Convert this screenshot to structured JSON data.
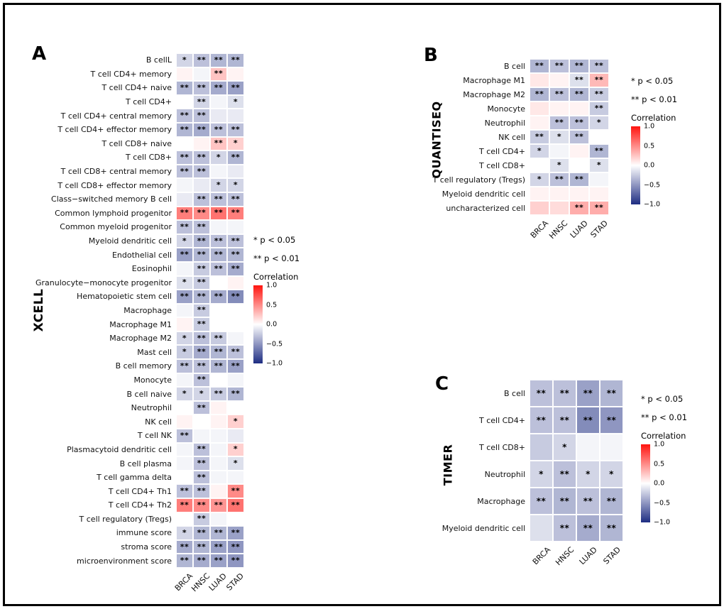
{
  "figure": {
    "background": "#ffffff",
    "border_color": "#000000"
  },
  "palette": {
    "positive_max": "#ff1410",
    "zero": "#ffffff",
    "negative_max": "#1e2d82",
    "star_color": "#000000"
  },
  "chart_data": [
    {
      "type": "heatmap",
      "panel": "A",
      "method": "XCELL",
      "columns": [
        "BRCA",
        "HNSC",
        "LUAD",
        "STAD"
      ],
      "rows": [
        "B cellL",
        "T cell CD4+ memory",
        "T cell CD4+ naive",
        "T cell CD4+",
        "T cell CD4+ central memory",
        "T cell CD4+ effector memory",
        "T cell CD8+ naive",
        "T cell CD8+",
        "T cell CD8+ central memory",
        "T cell CD8+ effector memory",
        "Class−switched memory B cell",
        "Common lymphoid progenitor",
        "Common myeloid progenitor",
        "Myeloid dendritic cell",
        "Endothelial cell",
        "Eosinophil",
        "Granulocyte−monocyte progenitor",
        "Hematopoietic stem cell",
        "Macrophage",
        "Macrophage M1",
        "Macrophage M2",
        "Mast cell",
        "B cell memory",
        "Monocyte",
        "B cell naive",
        "Neutrophil",
        "NK cell",
        "T cell NK",
        "Plasmacytoid dendritic cell",
        "B cell plasma",
        "T cell gamma delta",
        "T cell CD4+ Th1",
        "T cell CD4+ Th2",
        "T cell regulatory (Tregs)",
        "immune score",
        "stroma score",
        "microenvironment score"
      ],
      "values": [
        [
          -0.2,
          -0.3,
          -0.35,
          -0.35
        ],
        [
          0.05,
          -0.05,
          0.25,
          0.05
        ],
        [
          -0.35,
          -0.3,
          -0.4,
          -0.45
        ],
        [
          0.0,
          -0.2,
          -0.05,
          -0.15
        ],
        [
          -0.3,
          -0.3,
          -0.1,
          -0.1
        ],
        [
          -0.35,
          -0.4,
          -0.3,
          -0.3
        ],
        [
          0.0,
          0.05,
          0.25,
          0.2
        ],
        [
          -0.3,
          -0.3,
          -0.2,
          -0.35
        ],
        [
          -0.3,
          -0.3,
          -0.05,
          -0.1
        ],
        [
          -0.05,
          -0.1,
          -0.2,
          -0.2
        ],
        [
          -0.1,
          -0.3,
          -0.3,
          -0.3
        ],
        [
          0.55,
          0.5,
          0.6,
          0.55
        ],
        [
          -0.3,
          -0.3,
          -0.05,
          -0.05
        ],
        [
          -0.2,
          -0.35,
          -0.3,
          -0.3
        ],
        [
          -0.45,
          -0.35,
          -0.35,
          -0.35
        ],
        [
          -0.05,
          -0.25,
          -0.3,
          -0.4
        ],
        [
          -0.15,
          -0.25,
          0.0,
          0.05
        ],
        [
          -0.45,
          -0.35,
          -0.4,
          -0.55
        ],
        [
          -0.05,
          -0.25,
          0.0,
          0.0
        ],
        [
          0.05,
          -0.25,
          0.0,
          0.0
        ],
        [
          -0.2,
          -0.3,
          -0.25,
          -0.05
        ],
        [
          -0.25,
          -0.4,
          -0.35,
          -0.3
        ],
        [
          -0.3,
          -0.3,
          -0.35,
          -0.45
        ],
        [
          -0.05,
          -0.3,
          0.0,
          -0.05
        ],
        [
          -0.2,
          -0.2,
          -0.25,
          -0.35
        ],
        [
          0.0,
          -0.3,
          0.05,
          0.0
        ],
        [
          0.05,
          0.0,
          0.05,
          0.2
        ],
        [
          -0.3,
          -0.05,
          -0.05,
          -0.1
        ],
        [
          -0.05,
          -0.3,
          -0.05,
          0.2
        ],
        [
          -0.05,
          -0.3,
          -0.05,
          -0.15
        ],
        [
          0.0,
          -0.3,
          -0.05,
          -0.05
        ],
        [
          -0.3,
          -0.3,
          0.05,
          0.5
        ],
        [
          0.55,
          0.5,
          0.45,
          0.6
        ],
        [
          0.0,
          -0.25,
          -0.05,
          0.0
        ],
        [
          -0.2,
          -0.35,
          -0.35,
          -0.45
        ],
        [
          -0.4,
          -0.35,
          -0.45,
          -0.5
        ],
        [
          -0.35,
          -0.4,
          -0.45,
          -0.5
        ]
      ],
      "sig": [
        [
          "*",
          "**",
          "**",
          "**"
        ],
        [
          "",
          "",
          "**",
          ""
        ],
        [
          "**",
          "**",
          "**",
          "**"
        ],
        [
          "",
          "**",
          "",
          "*"
        ],
        [
          "**",
          "**",
          "",
          ""
        ],
        [
          "**",
          "**",
          "**",
          "**"
        ],
        [
          "",
          "",
          "**",
          "*"
        ],
        [
          "**",
          "**",
          "*",
          "**"
        ],
        [
          "**",
          "**",
          "",
          ""
        ],
        [
          "",
          "",
          "*",
          "*"
        ],
        [
          "",
          "**",
          "**",
          "**"
        ],
        [
          "**",
          "**",
          "**",
          "**"
        ],
        [
          "**",
          "**",
          "",
          ""
        ],
        [
          "*",
          "**",
          "**",
          "**"
        ],
        [
          "**",
          "**",
          "**",
          "**"
        ],
        [
          "",
          "**",
          "**",
          "**"
        ],
        [
          "*",
          "**",
          "",
          ""
        ],
        [
          "**",
          "**",
          "**",
          "**"
        ],
        [
          "",
          "**",
          "",
          ""
        ],
        [
          "",
          "**",
          "",
          ""
        ],
        [
          "*",
          "**",
          "**",
          ""
        ],
        [
          "*",
          "**",
          "**",
          "**"
        ],
        [
          "**",
          "**",
          "**",
          "**"
        ],
        [
          "",
          "**",
          "",
          ""
        ],
        [
          "*",
          "*",
          "**",
          "**"
        ],
        [
          "",
          "**",
          "",
          ""
        ],
        [
          "",
          "",
          "",
          "*"
        ],
        [
          "**",
          "",
          "",
          ""
        ],
        [
          "",
          "**",
          "",
          "*"
        ],
        [
          "",
          "**",
          "",
          "*"
        ],
        [
          "",
          "**",
          "",
          ""
        ],
        [
          "**",
          "**",
          "",
          "**"
        ],
        [
          "**",
          "**",
          "**",
          "**"
        ],
        [
          "",
          "**",
          "",
          ""
        ],
        [
          "*",
          "**",
          "**",
          "**"
        ],
        [
          "**",
          "**",
          "**",
          "**"
        ],
        [
          "**",
          "**",
          "**",
          "**"
        ]
      ],
      "legend": {
        "p05": "* p < 0.05",
        "p01": "** p < 0.01",
        "colorbar_title": "Correlation",
        "ticks": [
          "1.0",
          "0.5",
          "0.0",
          "−0.5",
          "−1.0"
        ],
        "range": [
          -1,
          1
        ]
      }
    },
    {
      "type": "heatmap",
      "panel": "B",
      "method": "QUANTISEQ",
      "columns": [
        "BRCA",
        "HNSC",
        "LUAD",
        "STAD"
      ],
      "rows": [
        "B cell",
        "Macrophage M1",
        "Macrophage M2",
        "Monocyte",
        "Neutrophil",
        "NK cell",
        "T cell CD4+",
        "T cell CD8+",
        "T cell regulatory (Tregs)",
        "Myeloid dendritic cell",
        "uncharacterized cell"
      ],
      "values": [
        [
          -0.35,
          -0.3,
          -0.35,
          -0.3
        ],
        [
          0.1,
          0.05,
          -0.15,
          0.3
        ],
        [
          -0.35,
          -0.3,
          -0.35,
          -0.25
        ],
        [
          0.1,
          0.05,
          0.05,
          -0.25
        ],
        [
          0.05,
          -0.3,
          -0.3,
          -0.2
        ],
        [
          -0.25,
          -0.15,
          -0.3,
          0.0
        ],
        [
          -0.2,
          -0.05,
          0.05,
          -0.35
        ],
        [
          0.0,
          -0.15,
          0.0,
          -0.15
        ],
        [
          -0.2,
          -0.3,
          -0.35,
          -0.05
        ],
        [
          0.05,
          0.05,
          0.05,
          0.05
        ],
        [
          0.2,
          0.15,
          0.35,
          0.35
        ]
      ],
      "sig": [
        [
          "**",
          "**",
          "**",
          "**"
        ],
        [
          "",
          "",
          "**",
          "**"
        ],
        [
          "**",
          "**",
          "**",
          "**"
        ],
        [
          "",
          "",
          "",
          "**"
        ],
        [
          "",
          "**",
          "**",
          "*"
        ],
        [
          "**",
          "*",
          "**",
          ""
        ],
        [
          "*",
          "",
          "",
          "**"
        ],
        [
          "",
          "*",
          "",
          "*"
        ],
        [
          "*",
          "**",
          "**",
          ""
        ],
        [
          "",
          "",
          "",
          ""
        ],
        [
          "",
          "",
          "**",
          "**"
        ]
      ],
      "legend": {
        "p05": "* p < 0.05",
        "p01": "** p < 0.01",
        "colorbar_title": "Correlation",
        "ticks": [
          "1.0",
          "0.5",
          "0.0",
          "−0.5",
          "−1.0"
        ],
        "range": [
          -1,
          1
        ]
      }
    },
    {
      "type": "heatmap",
      "panel": "C",
      "method": "TIMER",
      "columns": [
        "BRCA",
        "HNSC",
        "LUAD",
        "STAD"
      ],
      "rows": [
        "B cell",
        "T cell CD4+",
        "T cell CD8+",
        "Neutrophil",
        "Macrophage",
        "Myeloid dendritic cell"
      ],
      "values": [
        [
          -0.3,
          -0.3,
          -0.45,
          -0.35
        ],
        [
          -0.3,
          -0.3,
          -0.55,
          -0.5
        ],
        [
          -0.25,
          -0.2,
          -0.05,
          -0.05
        ],
        [
          -0.2,
          -0.3,
          -0.2,
          -0.2
        ],
        [
          -0.3,
          -0.35,
          -0.3,
          -0.35
        ],
        [
          -0.15,
          -0.3,
          -0.4,
          -0.35
        ]
      ],
      "sig": [
        [
          "**",
          "**",
          "**",
          "**"
        ],
        [
          "**",
          "**",
          "**",
          "**"
        ],
        [
          "",
          "*",
          "",
          ""
        ],
        [
          "*",
          "**",
          "*",
          "*"
        ],
        [
          "**",
          "**",
          "**",
          "**"
        ],
        [
          "",
          "**",
          "**",
          "**"
        ]
      ],
      "legend": {
        "p05": "* p < 0.05",
        "p01": "** p < 0.01",
        "colorbar_title": "Correlation",
        "ticks": [
          "1.0",
          "0.5",
          "0.0",
          "−0.5",
          "−1.0"
        ],
        "range": [
          -1,
          1
        ]
      }
    }
  ]
}
